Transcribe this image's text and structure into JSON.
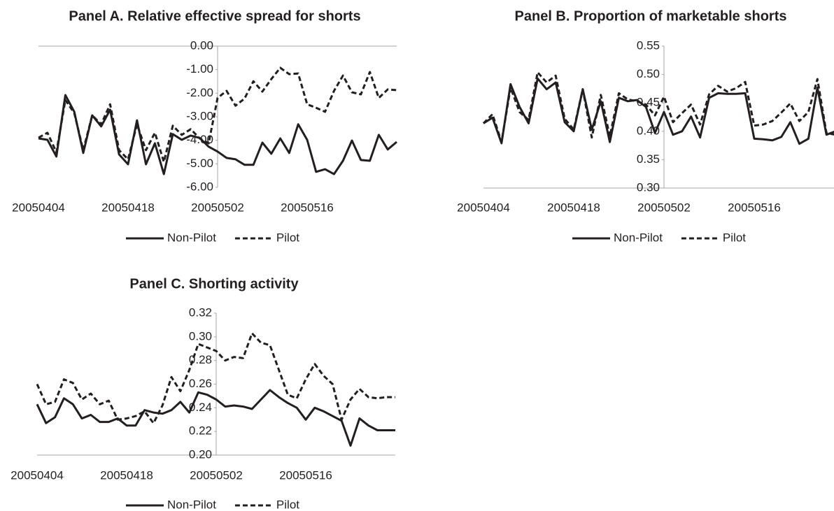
{
  "chart_data": [
    {
      "type": "line",
      "title": "Panel A. Relative effective spread for shorts",
      "categories": [
        "20050404",
        null,
        null,
        null,
        null,
        null,
        null,
        null,
        null,
        null,
        "20050418",
        null,
        null,
        null,
        null,
        null,
        null,
        null,
        null,
        null,
        "20050502",
        null,
        null,
        null,
        null,
        null,
        null,
        null,
        null,
        null,
        "20050516",
        null,
        null,
        null,
        null,
        null,
        null,
        null,
        null,
        null,
        null
      ],
      "ylim": [
        -6,
        0
      ],
      "yticks": [
        {
          "value": 0,
          "label": "0.00"
        },
        {
          "value": -1,
          "label": "-1.00"
        },
        {
          "value": -2,
          "label": "-2.00"
        },
        {
          "value": -3,
          "label": "-3.00"
        },
        {
          "value": -4,
          "label": "-4.00"
        },
        {
          "value": -5,
          "label": "-5.00"
        },
        {
          "value": -6,
          "label": "-6.00"
        }
      ],
      "grid": false,
      "legend": "bottom",
      "series": [
        {
          "name": "Non-Pilot",
          "color": "#231f20",
          "line_style": "solid",
          "values": [
            -3.92,
            -3.98,
            -4.69,
            -2.08,
            -2.79,
            -4.54,
            -2.94,
            -3.41,
            -2.7,
            -4.6,
            -5.02,
            -3.15,
            -5.02,
            -4.13,
            -5.44,
            -3.74,
            -3.98,
            -3.8,
            -3.9,
            -4.27,
            -4.48,
            -4.75,
            -4.81,
            -5.04,
            -5.04,
            -4.1,
            -4.57,
            -3.92,
            -4.54,
            -3.32,
            -3.98,
            -5.34,
            -5.23,
            -5.44,
            -4.87,
            -4.01,
            -4.84,
            -4.87,
            -3.77,
            -4.39,
            -4.07
          ]
        },
        {
          "name": "Pilot",
          "color": "#231f20",
          "line_style": "dashed",
          "values": [
            -3.89,
            -3.68,
            -4.51,
            -2.29,
            -2.85,
            -4.42,
            -2.94,
            -3.32,
            -2.47,
            -4.42,
            -4.81,
            -3.32,
            -4.42,
            -3.68,
            -4.92,
            -3.38,
            -3.77,
            -3.53,
            -3.92,
            -4.13,
            -2.2,
            -1.9,
            -2.53,
            -2.23,
            -1.49,
            -1.93,
            -1.4,
            -0.92,
            -1.19,
            -1.16,
            -2.47,
            -2.62,
            -2.79,
            -1.9,
            -1.25,
            -1.96,
            -2.05,
            -1.1,
            -2.2,
            -1.84,
            -1.87
          ]
        }
      ]
    },
    {
      "type": "line",
      "title": "Panel B. Proportion of marketable shorts",
      "categories": [
        "20050404",
        null,
        null,
        null,
        null,
        null,
        null,
        null,
        null,
        null,
        "20050418",
        null,
        null,
        null,
        null,
        null,
        null,
        null,
        null,
        null,
        "20050502",
        null,
        null,
        null,
        null,
        null,
        null,
        null,
        null,
        null,
        "20050516",
        null,
        null,
        null,
        null,
        null,
        null,
        null,
        null,
        null,
        null
      ],
      "ylim": [
        0.3,
        0.55
      ],
      "yticks": [
        {
          "value": 0.3,
          "label": "0.30"
        },
        0.35,
        {
          "value": 0.4,
          "label": "0.40"
        },
        0.45,
        {
          "value": 0.5,
          "label": "0.50"
        },
        0.55
      ],
      "grid": false,
      "legend": "bottom",
      "series": [
        {
          "name": "Non-Pilot",
          "color": "#231f20",
          "line_style": "solid",
          "values": [
            0.414,
            0.424,
            0.379,
            0.483,
            0.443,
            0.414,
            0.493,
            0.474,
            0.486,
            0.416,
            0.4,
            0.474,
            0.403,
            0.453,
            0.381,
            0.459,
            0.453,
            0.455,
            0.443,
            0.397,
            0.434,
            0.394,
            0.4,
            0.426,
            0.389,
            0.459,
            0.467,
            0.466,
            0.466,
            0.467,
            0.387,
            0.386,
            0.384,
            0.39,
            0.416,
            0.378,
            0.387,
            0.477,
            0.394,
            0.4,
            0.4
          ]
        },
        {
          "name": "Pilot",
          "color": "#231f20",
          "line_style": "dashed",
          "values": [
            0.414,
            0.43,
            0.381,
            0.477,
            0.434,
            0.42,
            0.504,
            0.486,
            0.498,
            0.422,
            0.403,
            0.474,
            0.389,
            0.464,
            0.391,
            0.467,
            0.456,
            0.453,
            0.447,
            0.428,
            0.461,
            0.416,
            0.432,
            0.447,
            0.412,
            0.465,
            0.48,
            0.47,
            0.476,
            0.487,
            0.41,
            0.412,
            0.418,
            0.433,
            0.449,
            0.418,
            0.434,
            0.492,
            0.397,
            0.394,
            0.394
          ]
        }
      ]
    },
    {
      "type": "line",
      "title": "Panel C. Shorting activity",
      "categories": [
        "20050404",
        null,
        null,
        null,
        null,
        null,
        null,
        null,
        null,
        null,
        "20050418",
        null,
        null,
        null,
        null,
        null,
        null,
        null,
        null,
        null,
        "20050502",
        null,
        null,
        null,
        null,
        null,
        null,
        null,
        null,
        null,
        "20050516",
        null,
        null,
        null,
        null,
        null,
        null,
        null,
        null,
        null,
        null
      ],
      "ylim": [
        0.2,
        0.32
      ],
      "yticks": [
        {
          "value": 0.2,
          "label": "0.20"
        },
        0.22,
        0.24,
        0.26,
        0.28,
        {
          "value": 0.3,
          "label": "0.30"
        },
        0.32
      ],
      "grid": false,
      "legend": "bottom",
      "series": [
        {
          "name": "Non-Pilot",
          "color": "#231f20",
          "line_style": "solid",
          "values": [
            0.243,
            0.227,
            0.232,
            0.248,
            0.243,
            0.231,
            0.234,
            0.228,
            0.228,
            0.231,
            0.225,
            0.225,
            0.238,
            0.236,
            0.235,
            0.238,
            0.245,
            0.236,
            0.253,
            0.251,
            0.247,
            0.241,
            0.242,
            0.241,
            0.239,
            0.247,
            0.255,
            0.249,
            0.244,
            0.24,
            0.23,
            0.24,
            0.237,
            0.233,
            0.229,
            0.208,
            0.231,
            0.225,
            0.221,
            0.221,
            0.221
          ]
        },
        {
          "name": "Pilot",
          "color": "#231f20",
          "line_style": "dashed",
          "values": [
            0.26,
            0.243,
            0.245,
            0.264,
            0.261,
            0.247,
            0.252,
            0.243,
            0.246,
            0.23,
            0.231,
            0.233,
            0.237,
            0.227,
            0.242,
            0.266,
            0.254,
            0.272,
            0.294,
            0.291,
            0.288,
            0.28,
            0.283,
            0.282,
            0.303,
            0.295,
            0.293,
            0.272,
            0.251,
            0.248,
            0.264,
            0.277,
            0.267,
            0.26,
            0.23,
            0.247,
            0.256,
            0.249,
            0.248,
            0.249,
            0.249
          ]
        }
      ]
    }
  ]
}
